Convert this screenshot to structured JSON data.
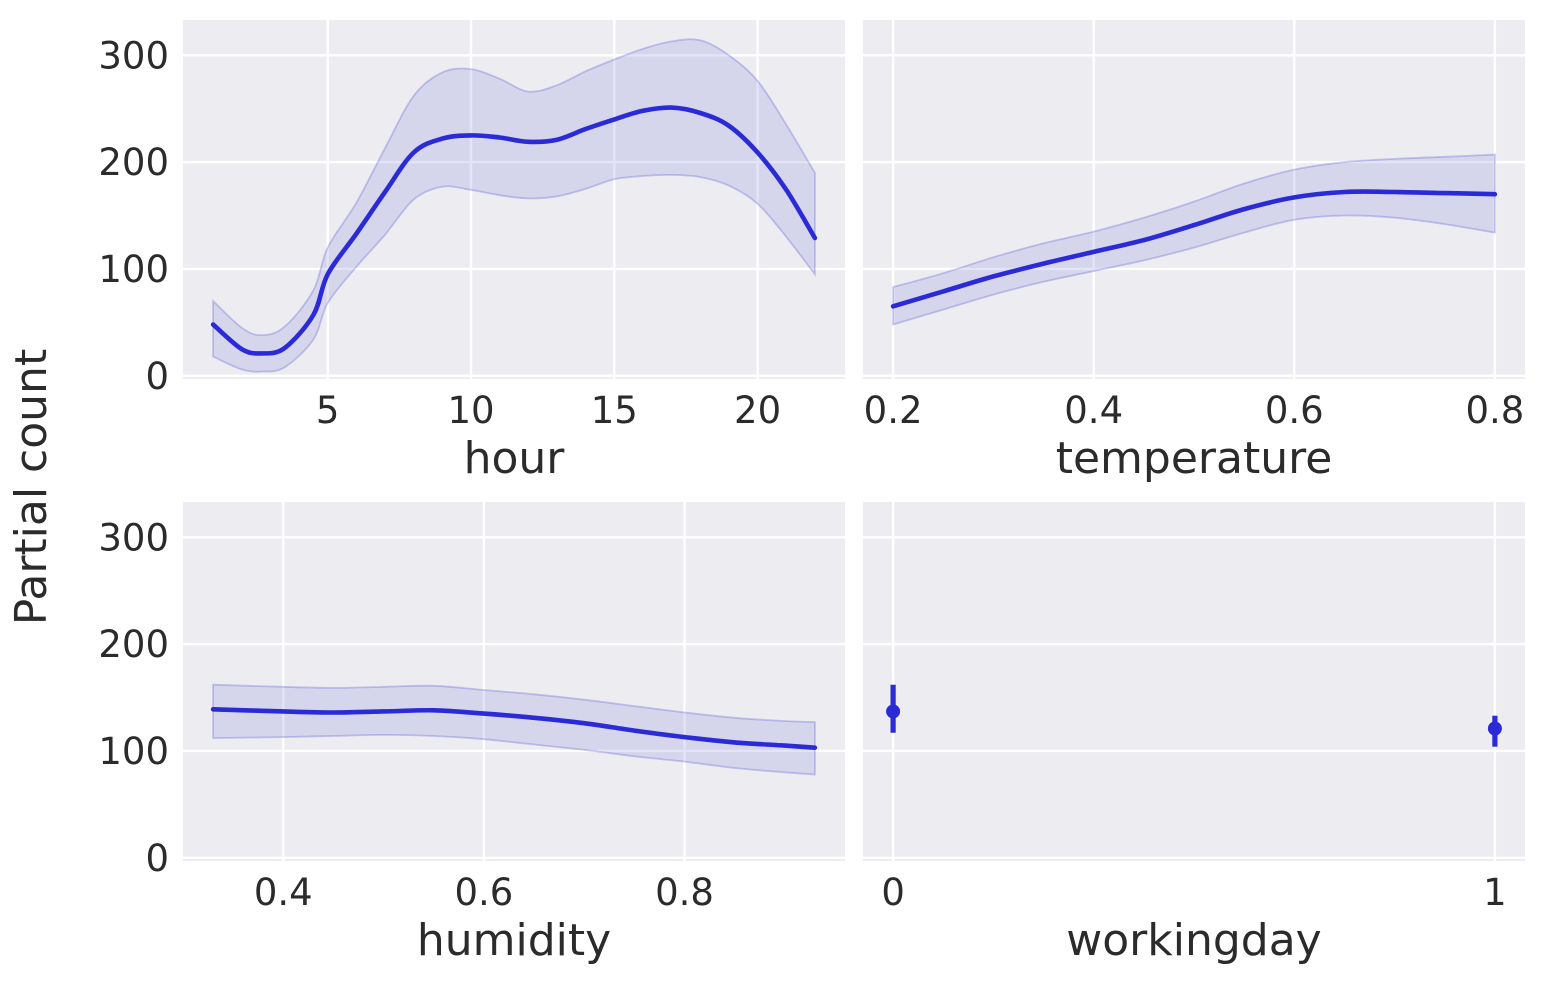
{
  "figure": {
    "kind": "partial-dependence-grid",
    "background": "#ffffff",
    "shared_ylabel": "Partial count"
  },
  "style": {
    "axes_bg": "#ededf1",
    "grid_color": "#ffffff",
    "line_color": "#2a2ad6",
    "band_fill": "rgba(88,88,214,0.16)",
    "band_edge": "rgba(88,88,214,0.30)",
    "marker_color": "#2a2ad6",
    "text_color": "#2b2b2b"
  },
  "chart_data": {
    "type": "line",
    "title": "",
    "ylabel": "Partial count",
    "ylim": [
      -3,
      333
    ],
    "yticks": [
      [
        0,
        "0"
      ],
      [
        100,
        "100"
      ],
      [
        200,
        "200"
      ],
      [
        300,
        "300"
      ]
    ],
    "grid": true,
    "legend": false,
    "panels": [
      {
        "id": "hour",
        "grid_pos": [
          0,
          0
        ],
        "xlabel": "hour",
        "kind": "line-band",
        "xlim": [
          -0.05,
          23.05
        ],
        "xticks": [
          [
            5,
            "5"
          ],
          [
            10,
            "10"
          ],
          [
            15,
            "15"
          ],
          [
            20,
            "20"
          ]
        ],
        "x_range_shown": [
          1,
          22
        ],
        "points": [
          [
            1,
            48,
            18,
            70
          ],
          [
            2,
            25,
            6,
            45
          ],
          [
            2.7,
            21,
            4,
            38
          ],
          [
            3.5,
            26,
            8,
            46
          ],
          [
            4.5,
            57,
            34,
            80
          ],
          [
            5,
            95,
            68,
            120
          ],
          [
            6,
            133,
            102,
            162
          ],
          [
            7,
            172,
            132,
            213
          ],
          [
            8,
            209,
            165,
            262
          ],
          [
            9,
            222,
            177,
            284
          ],
          [
            10,
            225,
            174,
            287
          ],
          [
            11,
            223,
            169,
            278
          ],
          [
            12,
            219,
            166,
            266
          ],
          [
            13,
            221,
            168,
            272
          ],
          [
            14,
            231,
            175,
            285
          ],
          [
            15,
            240,
            184,
            296
          ],
          [
            16,
            248,
            187,
            306
          ],
          [
            17,
            251,
            188,
            313
          ],
          [
            18,
            246,
            186,
            314
          ],
          [
            19,
            234,
            178,
            300
          ],
          [
            20,
            209,
            161,
            276
          ],
          [
            21,
            174,
            130,
            235
          ],
          [
            22,
            129,
            95,
            190
          ]
        ]
      },
      {
        "id": "temperature",
        "grid_pos": [
          0,
          1
        ],
        "xlabel": "temperature",
        "kind": "line-band",
        "xlim": [
          0.17,
          0.83
        ],
        "xticks": [
          [
            0.2,
            "0.2"
          ],
          [
            0.4,
            "0.4"
          ],
          [
            0.6,
            "0.6"
          ],
          [
            0.8,
            "0.8"
          ]
        ],
        "x_range_shown": [
          0.2,
          0.8
        ],
        "points": [
          [
            0.2,
            65,
            48,
            83
          ],
          [
            0.25,
            79,
            62,
            96
          ],
          [
            0.3,
            93,
            76,
            111
          ],
          [
            0.35,
            105,
            88,
            124
          ],
          [
            0.4,
            116,
            98,
            135
          ],
          [
            0.45,
            127,
            108,
            148
          ],
          [
            0.5,
            141,
            120,
            163
          ],
          [
            0.55,
            156,
            134,
            180
          ],
          [
            0.6,
            167,
            146,
            193
          ],
          [
            0.65,
            172,
            150,
            200
          ],
          [
            0.7,
            172,
            148,
            203
          ],
          [
            0.75,
            171,
            142,
            205
          ],
          [
            0.8,
            170,
            134,
            207
          ]
        ]
      },
      {
        "id": "humidity",
        "grid_pos": [
          1,
          0
        ],
        "xlabel": "humidity",
        "kind": "line-band",
        "xlim": [
          0.3,
          0.96
        ],
        "xticks": [
          [
            0.4,
            "0.4"
          ],
          [
            0.6,
            "0.6"
          ],
          [
            0.8,
            "0.8"
          ]
        ],
        "x_range_shown": [
          0.33,
          0.93
        ],
        "points": [
          [
            0.33,
            139,
            112,
            162
          ],
          [
            0.4,
            137,
            113,
            160
          ],
          [
            0.45,
            136,
            114,
            159
          ],
          [
            0.5,
            137,
            115,
            160
          ],
          [
            0.55,
            138,
            114,
            161
          ],
          [
            0.6,
            135,
            111,
            157
          ],
          [
            0.65,
            131,
            106,
            153
          ],
          [
            0.7,
            126,
            101,
            148
          ],
          [
            0.75,
            119,
            95,
            142
          ],
          [
            0.8,
            113,
            90,
            136
          ],
          [
            0.85,
            108,
            84,
            131
          ],
          [
            0.9,
            105,
            80,
            128
          ],
          [
            0.93,
            103,
            78,
            127
          ]
        ]
      },
      {
        "id": "workingday",
        "grid_pos": [
          1,
          1
        ],
        "xlabel": "workingday",
        "kind": "errorbar",
        "xlim": [
          -0.05,
          1.05
        ],
        "xticks": [
          [
            0,
            "0"
          ],
          [
            1,
            "1"
          ]
        ],
        "points": [
          [
            0,
            137,
            117,
            162
          ],
          [
            1,
            121,
            104,
            133
          ]
        ]
      }
    ]
  }
}
